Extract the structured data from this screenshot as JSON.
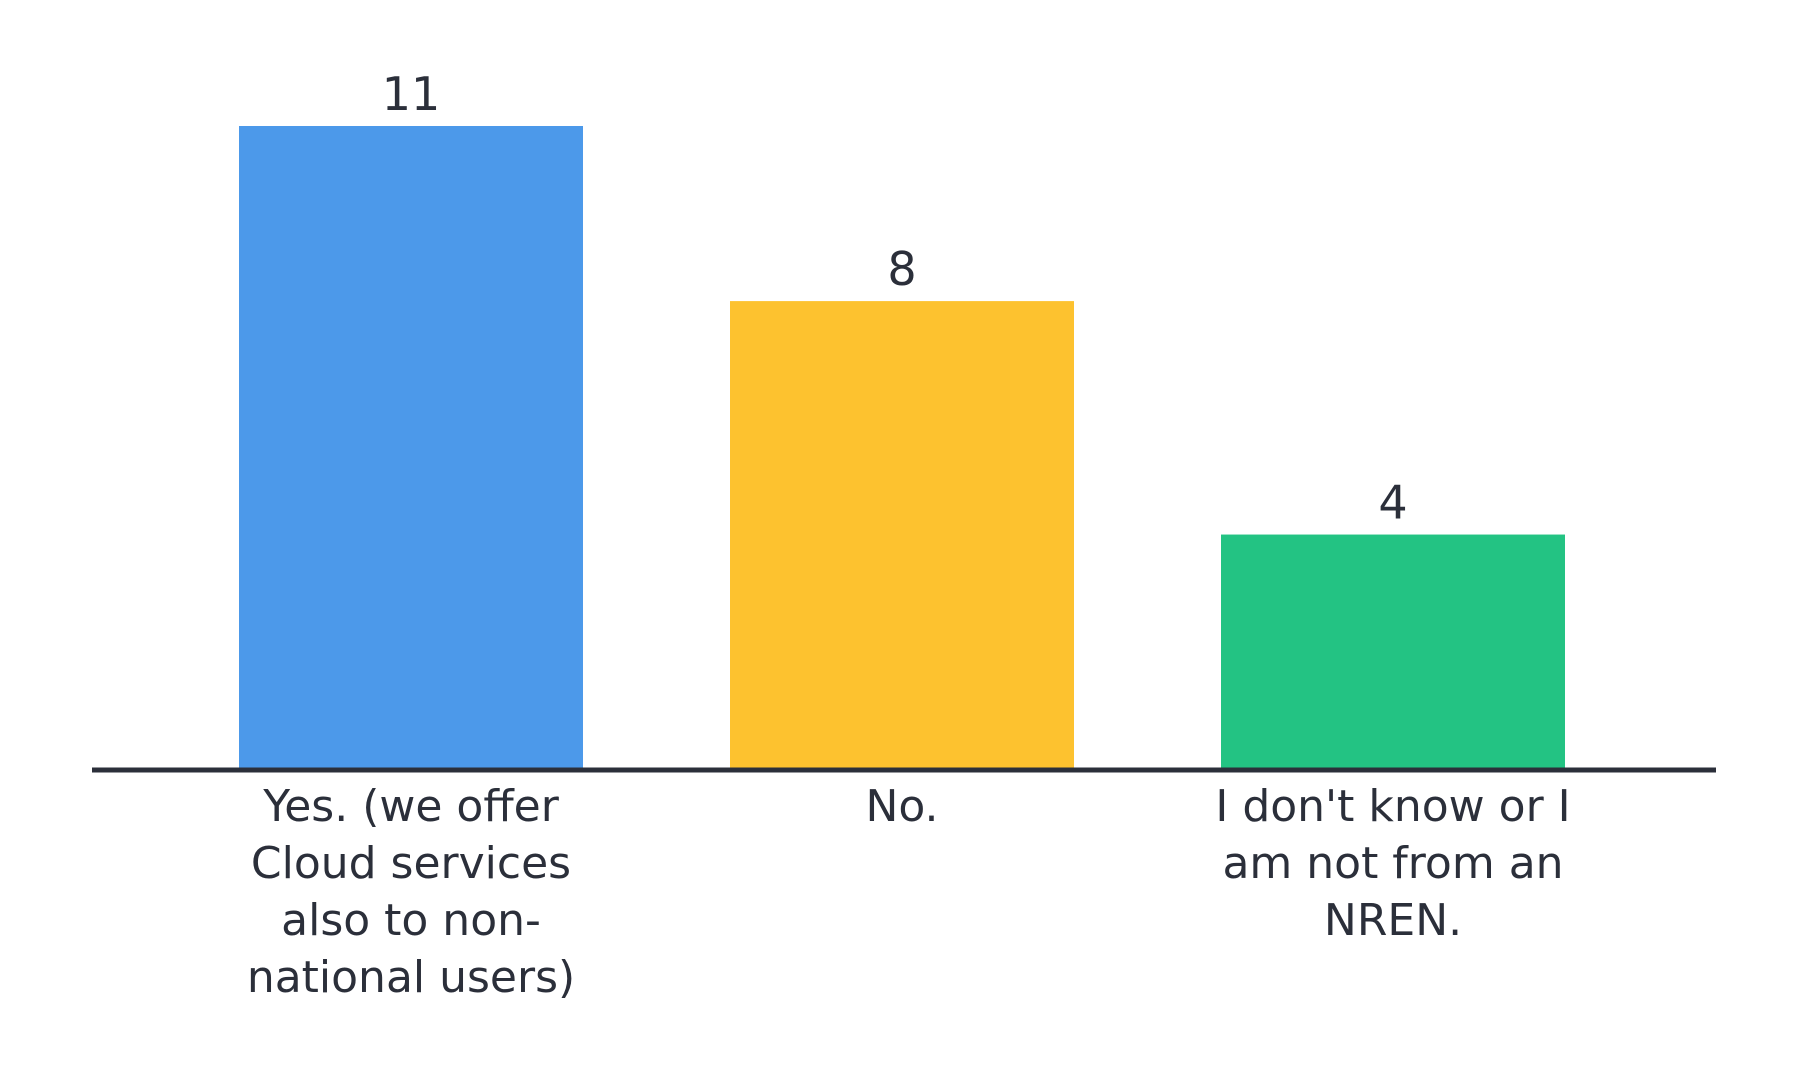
{
  "chart_data": {
    "type": "bar",
    "categories": [
      "Yes. (we offer Cloud services also to non-national users)",
      "No.",
      "I don't know or I am not from an NREN."
    ],
    "category_lines": [
      [
        "Yes. (we offer",
        "Cloud services",
        "also to non-",
        "national users)"
      ],
      [
        "No."
      ],
      [
        "I don't know or I",
        "am not from an",
        "NREN."
      ]
    ],
    "values": [
      11,
      8,
      4
    ],
    "value_labels": [
      "11",
      "8",
      "4"
    ],
    "colors": [
      "#4c99ea",
      "#fdc22f",
      "#23c383"
    ],
    "title": "",
    "xlabel": "",
    "ylabel": "",
    "ylim": [
      0,
      11
    ],
    "grid": false,
    "legend": "none",
    "axis_color": "#2b2f3a"
  }
}
